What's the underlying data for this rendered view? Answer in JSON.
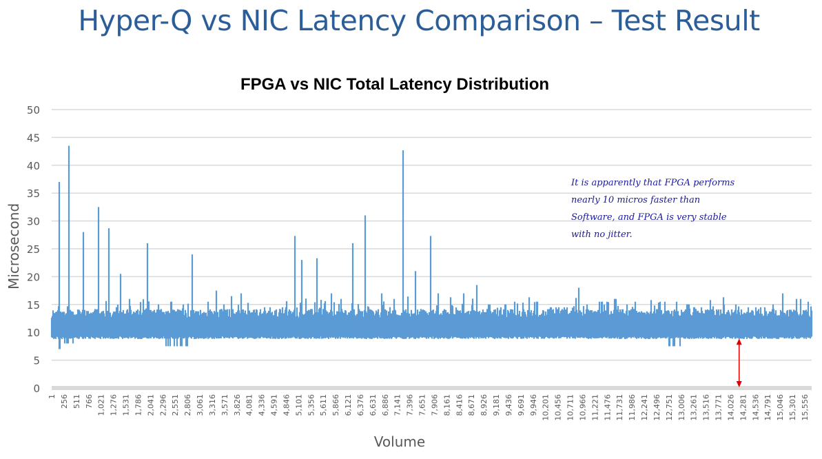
{
  "slide_title": "Hyper-Q vs NIC Latency Comparison – Test Result",
  "annotation": {
    "lines": [
      "It is apparently that FPGA performs",
      "nearly 10 micros faster than",
      "Software, and FPGA is very stable",
      "with no jitter."
    ]
  },
  "colors": {
    "series": "#5b9bd5",
    "grid": "#d9d9d9",
    "arrow": "#e00000",
    "title": "#2b5d99",
    "annotation": "#1a1a9a"
  },
  "chart_data": {
    "type": "line",
    "title": "FPGA vs NIC Total Latency Distribution",
    "xlabel": "Volume",
    "ylabel": "Microsecond",
    "ylim": [
      0,
      50
    ],
    "y_ticks": [
      "0",
      "5",
      "10",
      "15",
      "20",
      "25",
      "30",
      "35",
      "40",
      "45",
      "50"
    ],
    "xlim": [
      1,
      15700
    ],
    "x_ticks": [
      "1",
      "256",
      "511",
      "766",
      "1,021",
      "1,276",
      "1,531",
      "1,786",
      "2,041",
      "2,296",
      "2,551",
      "2,806",
      "3,061",
      "3,316",
      "3,571",
      "3,826",
      "4,081",
      "4,336",
      "4,591",
      "4,846",
      "5,101",
      "5,356",
      "5,611",
      "5,866",
      "6,121",
      "6,376",
      "6,631",
      "6,886",
      "7,141",
      "7,396",
      "7,651",
      "7,906",
      "8,161",
      "8,416",
      "8,671",
      "8,926",
      "9,181",
      "9,436",
      "9,691",
      "9,946",
      "10,201",
      "10,456",
      "10,711",
      "10,966",
      "11,221",
      "11,476",
      "11,731",
      "11,986",
      "12,241",
      "12,496",
      "12,751",
      "13,006",
      "13,261",
      "13,516",
      "13,771",
      "14,026",
      "14,281",
      "14,536",
      "14,791",
      "15,046",
      "15,301",
      "15,556"
    ],
    "grid": true,
    "series": [
      {
        "name": "NIC total latency",
        "bucket_size": 255,
        "typical_range": [
          9,
          14
        ],
        "bucket_max": [
          37,
          43.5,
          28,
          32.5,
          28.7,
          20.5,
          16,
          26,
          15,
          15.5,
          15,
          24,
          15.5,
          17.5,
          16.5,
          17,
          14,
          14.5,
          14.5,
          27.3,
          23,
          23.3,
          17,
          16,
          26,
          31,
          17,
          16,
          42.7,
          21,
          27.3,
          17,
          16.3,
          17,
          18.5,
          15,
          15,
          15.5,
          16.3,
          15.5,
          14.5,
          14.5,
          18,
          15,
          15.5,
          16,
          15,
          15.5,
          15.8,
          15.5,
          15.5,
          15,
          14.5,
          15.8,
          16.3,
          15,
          14.5,
          14.5,
          15,
          17,
          16,
          15.5
        ],
        "bucket_min": [
          7,
          8,
          9,
          9,
          9,
          9,
          9,
          9,
          9,
          7.5,
          7.5,
          8.8,
          9,
          9,
          9,
          8.7,
          8.7,
          8.8,
          8.8,
          8.8,
          8.8,
          8.8,
          9,
          9,
          9,
          9,
          9,
          8.8,
          9,
          9,
          8.5,
          8.8,
          8.8,
          8.8,
          8.8,
          8.8,
          8.8,
          8.8,
          8.8,
          8.8,
          8.8,
          8.8,
          8.8,
          8.8,
          8.8,
          8.8,
          8.8,
          8.8,
          8.8,
          8.8,
          7.5,
          8.8,
          8.8,
          8.8,
          8.8,
          8.8,
          8.8,
          8.8,
          8.8,
          8.8,
          8.8,
          8.8
        ]
      }
    ],
    "annotations": [
      {
        "type": "double-arrow",
        "x": 14200,
        "y_from": 0,
        "y_to": 9
      }
    ]
  }
}
